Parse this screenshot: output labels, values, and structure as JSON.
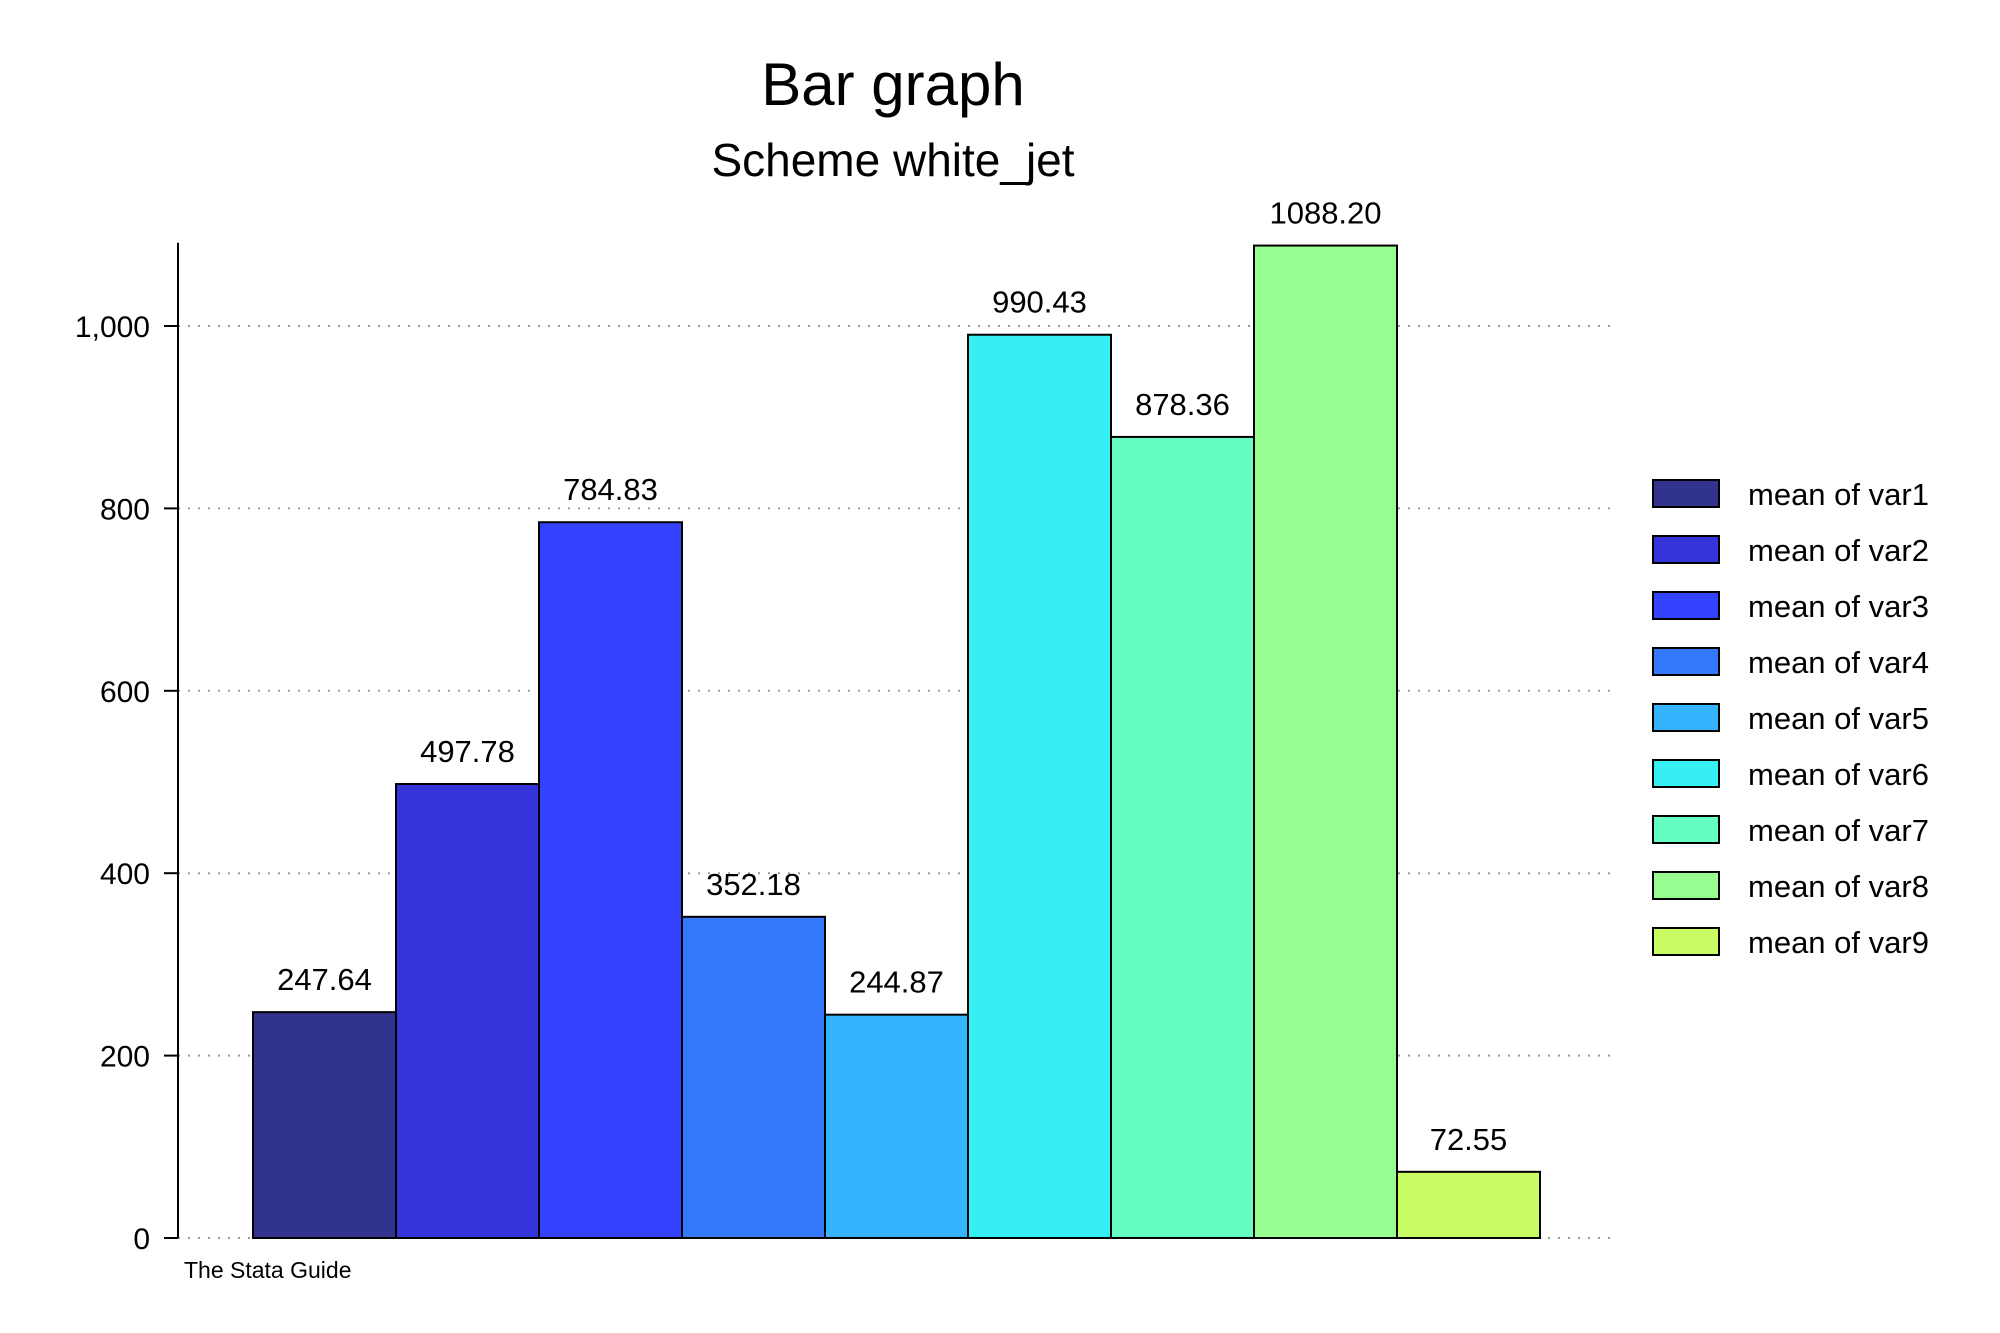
{
  "chart_data": {
    "type": "bar",
    "title": "Bar graph",
    "subtitle": "Scheme white_jet",
    "note": "The Stata Guide",
    "ylim": [
      0,
      1100
    ],
    "yticks": [
      0,
      200,
      400,
      600,
      800,
      1000
    ],
    "ytick_labels": [
      "0",
      "200",
      "400",
      "600",
      "800",
      "1,000"
    ],
    "grid": true,
    "legend_position": "right",
    "series": [
      {
        "name": "mean of var1",
        "value": 247.64,
        "label": "247.64",
        "color": "#32328f"
      },
      {
        "name": "mean of var2",
        "value": 497.78,
        "label": "497.78",
        "color": "#3434db"
      },
      {
        "name": "mean of var3",
        "value": 784.83,
        "label": "784.83",
        "color": "#3343fd"
      },
      {
        "name": "mean of var4",
        "value": 352.18,
        "label": "352.18",
        "color": "#3479fb"
      },
      {
        "name": "mean of var5",
        "value": 244.87,
        "label": "244.87",
        "color": "#35b3fd"
      },
      {
        "name": "mean of var6",
        "value": 990.43,
        "label": "990.43",
        "color": "#35eff3"
      },
      {
        "name": "mean of var7",
        "value": 878.36,
        "label": "878.36",
        "color": "#66fdc3"
      },
      {
        "name": "mean of var8",
        "value": 1088.2,
        "label": "1088.20",
        "color": "#97fd90"
      },
      {
        "name": "mean of var9",
        "value": 72.55,
        "label": "72.55",
        "color": "#c8fd64"
      }
    ]
  }
}
